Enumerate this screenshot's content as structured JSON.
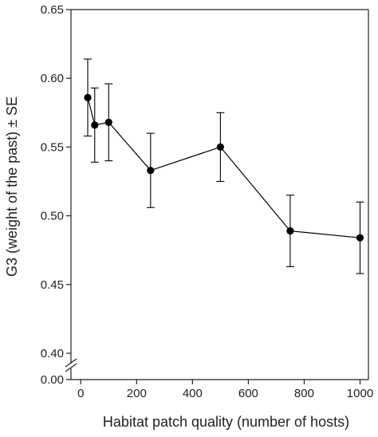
{
  "chart_data": {
    "type": "line",
    "xlabel": "Habitat patch quality (number of hosts)",
    "ylabel": "G3 (weight of the past) ± SE",
    "xlim": [
      -35,
      1030
    ],
    "ylim": [
      0.4,
      0.65
    ],
    "y_axis_break": true,
    "y_break_label": "0.00",
    "x_ticks": [
      0,
      200,
      400,
      600,
      800,
      1000
    ],
    "x_tick_labels": [
      "0",
      "200",
      "400",
      "600",
      "800",
      "1000"
    ],
    "y_ticks": [
      0.4,
      0.45,
      0.5,
      0.55,
      0.6,
      0.65
    ],
    "y_tick_labels": [
      "0.40",
      "0.45",
      "0.50",
      "0.55",
      "0.60",
      "0.65"
    ],
    "grid": false,
    "legend": "none",
    "series": [
      {
        "x": [
          25,
          50,
          100,
          250,
          500,
          750,
          1000
        ],
        "y": [
          0.586,
          0.566,
          0.568,
          0.533,
          0.55,
          0.489,
          0.484
        ],
        "se": [
          0.028,
          0.027,
          0.028,
          0.027,
          0.025,
          0.026,
          0.026
        ],
        "color": "#000000"
      }
    ]
  }
}
